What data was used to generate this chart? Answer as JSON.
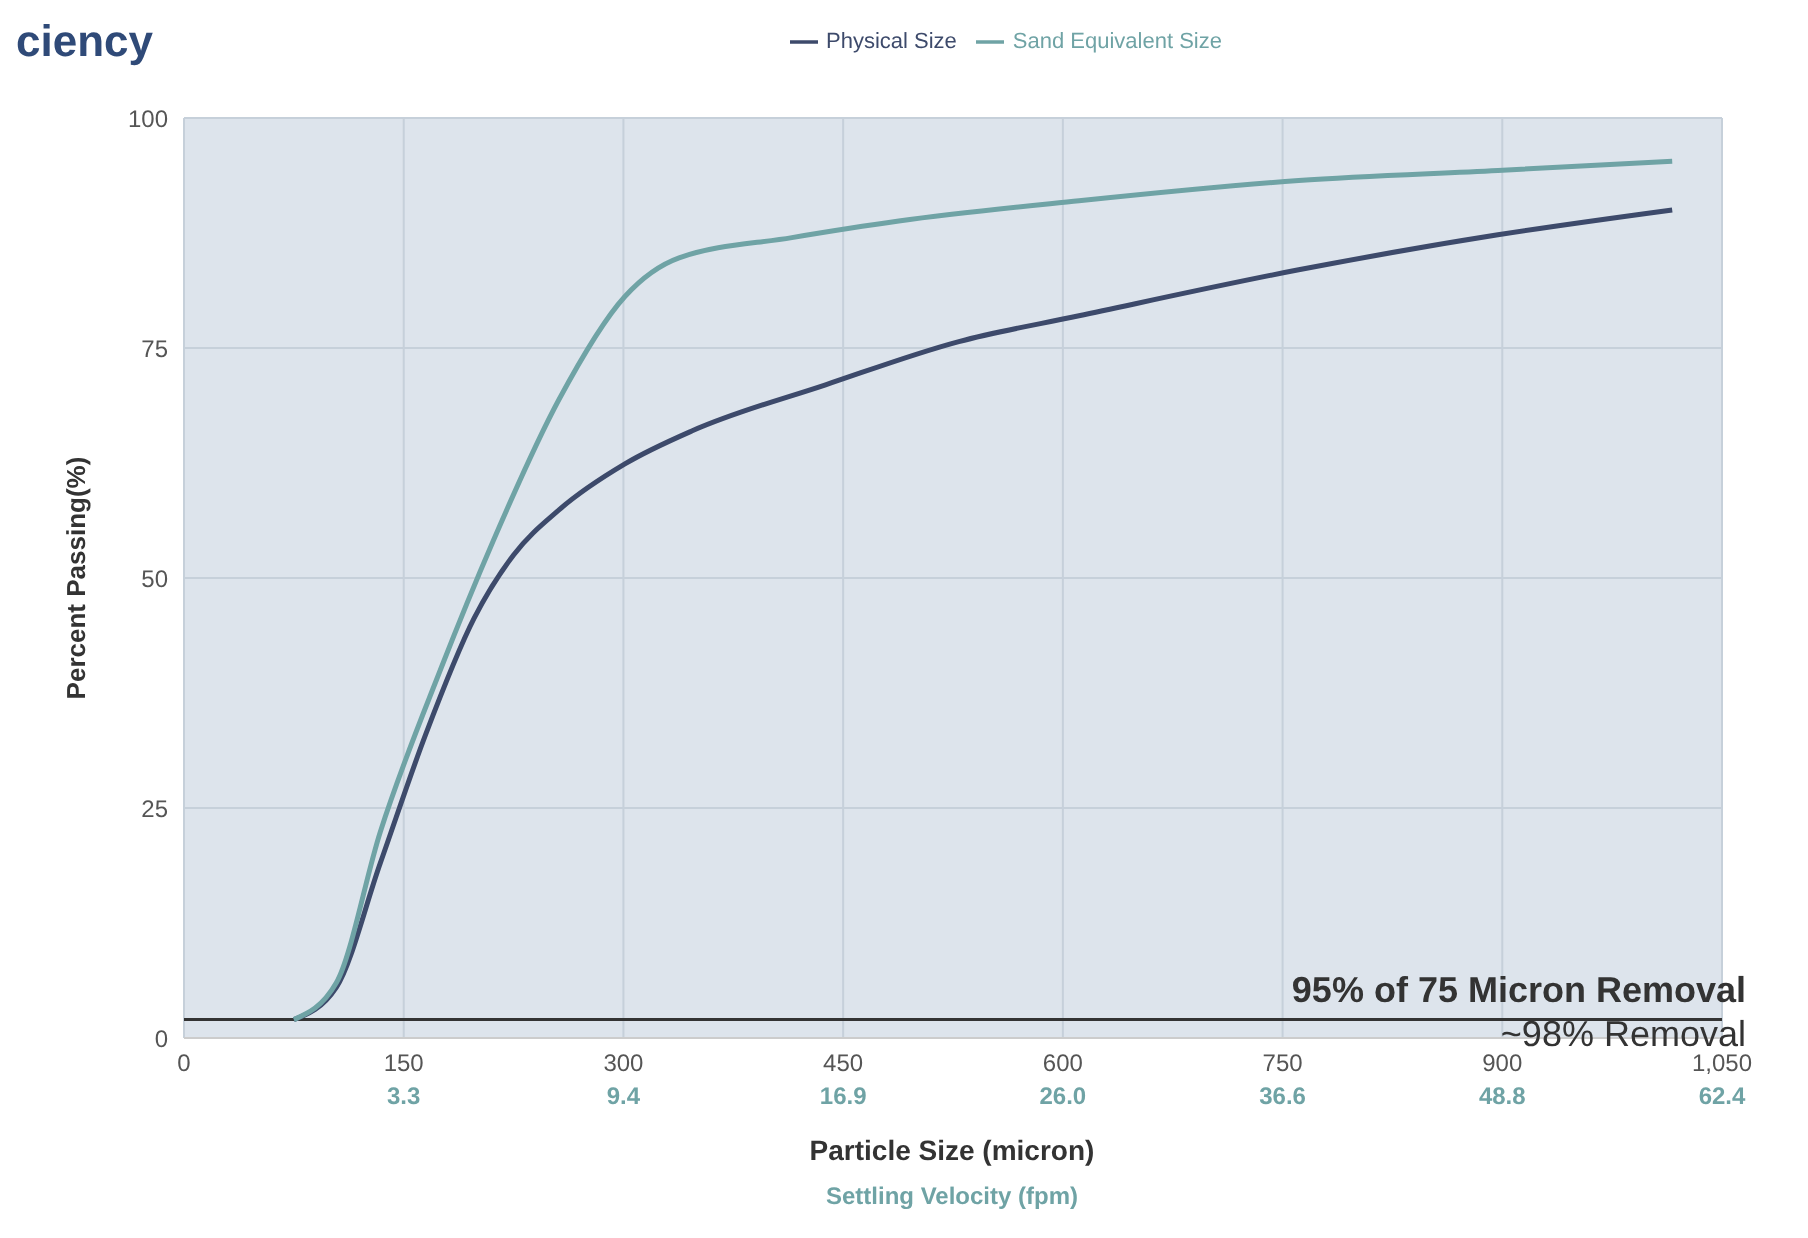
{
  "chart_data": {
    "type": "line",
    "title": "ciency",
    "xlabel": "Particle Size (micron)",
    "ylabel": "Percent Passing(%)",
    "x2label": "Settling Velocity (fpm)",
    "xlim": [
      0,
      1050
    ],
    "xticks": [
      0,
      150,
      300,
      450,
      600,
      750,
      900,
      {
        "value": 1050,
        "label": "1,050"
      }
    ],
    "ylim": [
      0,
      100
    ],
    "yticks": [
      0,
      25,
      50,
      75,
      100
    ],
    "grid": true,
    "legend": "top",
    "marker": "none",
    "series": [
      {
        "name": "Physical Size",
        "color": "#3d4a6b",
        "x": [
          75,
          104,
          134,
          165,
          198,
          225,
          256,
          301,
          347,
          438,
          529,
          611,
          761,
          897,
          1016
        ],
        "values": [
          2,
          5.5,
          19,
          33,
          45.6,
          52.5,
          57.4,
          62.4,
          66,
          71,
          75.7,
          78.5,
          83.5,
          87.3,
          90
        ]
      },
      {
        "name": "Sand Equivalent Size",
        "color": "#6fa3a5",
        "x": [
          75,
          104,
          134,
          175,
          211,
          256,
          301,
          338,
          415,
          488,
          611,
          761,
          897,
          1016
        ],
        "values": [
          2,
          6,
          22.4,
          40,
          54,
          69.4,
          80.6,
          84.8,
          87,
          88.8,
          91,
          93.2,
          94.3,
          95.3
        ]
      }
    ],
    "ref_lines": [
      {
        "axis": "y",
        "value": 2,
        "color": "#333333"
      }
    ],
    "annotations": [
      "95% of 75 Micron Removal",
      "~98% Removal",
      "3.3",
      "9.4",
      "16.9",
      "26.0",
      "36.6",
      "48.8",
      "62.4"
    ]
  }
}
